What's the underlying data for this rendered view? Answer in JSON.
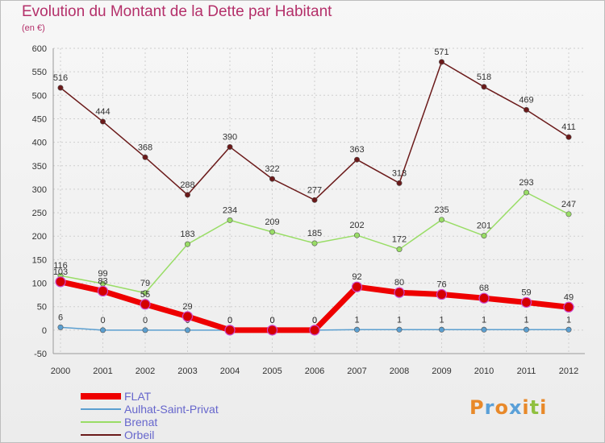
{
  "title": "Evolution du Montant de la Dette par Habitant",
  "unit": "(en €)",
  "logo": "Proxiti",
  "chart_data": {
    "type": "line",
    "x": [
      "2000",
      "2001",
      "2002",
      "2003",
      "2004",
      "2005",
      "2006",
      "2007",
      "2008",
      "2009",
      "2010",
      "2011",
      "2012"
    ],
    "ylim": [
      -50,
      600
    ],
    "yticks": [
      -50,
      0,
      50,
      100,
      150,
      200,
      250,
      300,
      350,
      400,
      450,
      500,
      550,
      600
    ],
    "grid": true,
    "legend_position": "bottom-left",
    "series": [
      {
        "name": "FLAT",
        "color": "#ee0000",
        "values": [
          103,
          83,
          55,
          29,
          0,
          0,
          0,
          92,
          80,
          76,
          68,
          59,
          49
        ]
      },
      {
        "name": "Aulhat-Saint-Privat",
        "color": "#5b9fd0",
        "values": [
          6,
          0,
          0,
          0,
          0,
          0,
          0,
          1,
          1,
          1,
          1,
          1,
          1
        ]
      },
      {
        "name": "Brenat",
        "color": "#99dd66",
        "values": [
          116,
          99,
          79,
          183,
          234,
          209,
          185,
          202,
          172,
          235,
          201,
          293,
          247
        ]
      },
      {
        "name": "Orbeil",
        "color": "#6b1a1a",
        "values": [
          516,
          444,
          368,
          288,
          390,
          322,
          277,
          363,
          313,
          571,
          518,
          469,
          411
        ]
      }
    ]
  }
}
